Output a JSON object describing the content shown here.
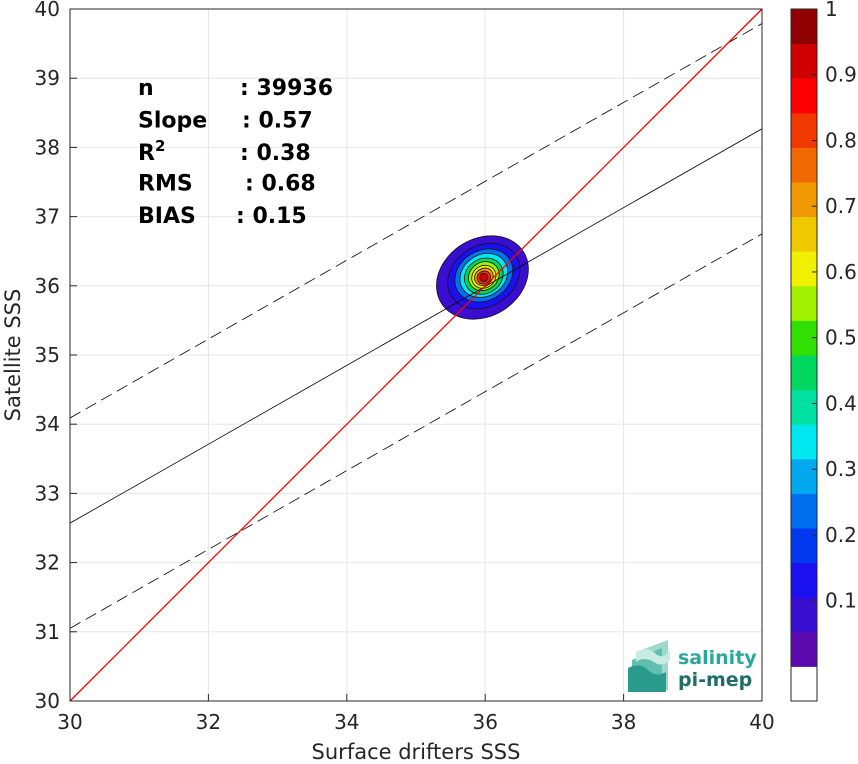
{
  "chart_data": {
    "type": "scatter",
    "xlabel": "Surface drifters SSS",
    "ylabel": "Satellite SSS",
    "xlim": [
      30,
      40
    ],
    "ylim": [
      30,
      40
    ],
    "x_ticks": [
      "30",
      "32",
      "34",
      "36",
      "38",
      "40"
    ],
    "y_ticks": [
      "30",
      "31",
      "32",
      "33",
      "34",
      "35",
      "36",
      "37",
      "38",
      "39",
      "40"
    ],
    "grid": true,
    "stats": [
      {
        "label": "n",
        "value": ": 39936"
      },
      {
        "label": "Slope",
        "value": ": 0.57"
      },
      {
        "label": "R",
        "sup": "2",
        "value": ": 0.38"
      },
      {
        "label": "RMS",
        "value": ": 0.68"
      },
      {
        "label": "BIAS",
        "value": ": 0.15"
      }
    ],
    "lines": {
      "identity": {
        "slope": 1,
        "intercept": 0,
        "color": "#ff0000"
      },
      "fit": {
        "slope": 0.57,
        "intercept": 15.47,
        "color": "#000000"
      },
      "fit_band_offset": 1.52
    },
    "density": {
      "center": [
        35.98,
        36.12
      ],
      "levels": [
        0.05,
        0.1,
        0.2,
        0.3,
        0.4,
        0.5,
        0.6,
        0.7,
        0.8,
        0.9
      ],
      "description_levels_outer_extent": {
        "x": [
          35.4,
          36.62
        ],
        "y": [
          35.42,
          36.67
        ]
      }
    },
    "colorbar": {
      "ticks": [
        "0.1",
        "0.2",
        "0.3",
        "0.4",
        "0.5",
        "0.6",
        "0.7",
        "0.8",
        "0.9",
        "1"
      ],
      "colors": [
        "#ffffff",
        "#5b0ab0",
        "#3a0ed0",
        "#1a10f0",
        "#0038f0",
        "#0070f0",
        "#00a8f0",
        "#00e8f0",
        "#00e0a0",
        "#00d860",
        "#30e000",
        "#a0f000",
        "#f0f000",
        "#f0c800",
        "#f09800",
        "#f06800",
        "#f03800",
        "#ff0000",
        "#d00000",
        "#900000"
      ]
    }
  },
  "logo": {
    "line1": "salinity",
    "line2": "pi-mep"
  }
}
